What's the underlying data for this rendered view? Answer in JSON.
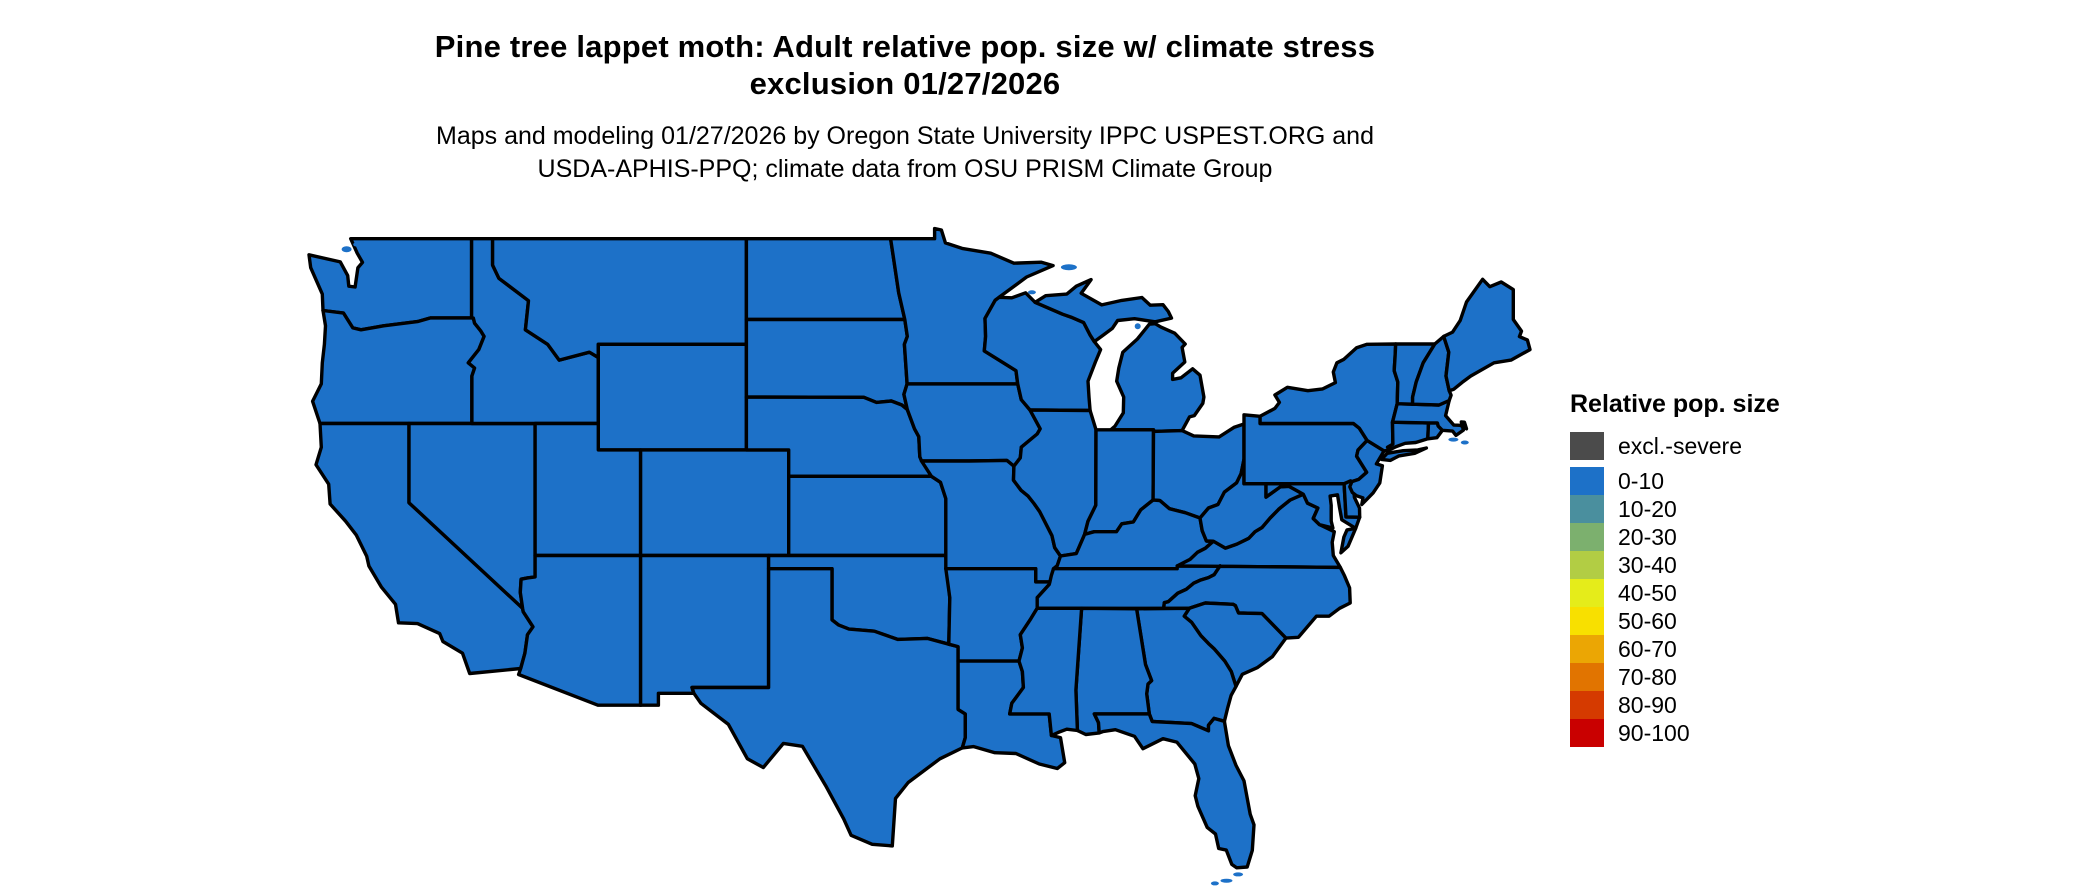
{
  "header": {
    "title_line1": "Pine tree lappet moth: Adult relative pop. size w/ climate stress",
    "title_line2": "exclusion 01/27/2026",
    "subtitle_line1": "Maps and modeling 01/27/2026 by Oregon State University IPPC USPEST.ORG and",
    "subtitle_line2": "USDA-APHIS-PPQ; climate data from OSU PRISM Climate Group"
  },
  "legend": {
    "title": "Relative pop. size",
    "items": [
      {
        "label": "excl.-severe",
        "color": "#4b4b4b",
        "separate": true
      },
      {
        "label": "0-10",
        "color": "#1d71c8"
      },
      {
        "label": "10-20",
        "color": "#4a8f9e"
      },
      {
        "label": "20-30",
        "color": "#7cb06e"
      },
      {
        "label": "30-40",
        "color": "#b2cd44"
      },
      {
        "label": "40-50",
        "color": "#e5ec1a"
      },
      {
        "label": "50-60",
        "color": "#f8e000"
      },
      {
        "label": "60-70",
        "color": "#eba604"
      },
      {
        "label": "70-80",
        "color": "#e17400"
      },
      {
        "label": "80-90",
        "color": "#d53a00"
      },
      {
        "label": "90-100",
        "color": "#c90000"
      }
    ]
  },
  "map": {
    "border_color": "#000000",
    "water_color": "#ffffff",
    "default_value": "0-10",
    "states": [
      {
        "id": "WA",
        "value": "0-10"
      },
      {
        "id": "OR",
        "value": "0-10"
      },
      {
        "id": "CA",
        "value": "0-10"
      },
      {
        "id": "NV",
        "value": "0-10"
      },
      {
        "id": "ID",
        "value": "0-10"
      },
      {
        "id": "MT",
        "value": "0-10"
      },
      {
        "id": "WY",
        "value": "0-10"
      },
      {
        "id": "UT",
        "value": "0-10"
      },
      {
        "id": "CO",
        "value": "0-10"
      },
      {
        "id": "AZ",
        "value": "0-10"
      },
      {
        "id": "NM",
        "value": "0-10"
      },
      {
        "id": "ND",
        "value": "0-10"
      },
      {
        "id": "SD",
        "value": "0-10"
      },
      {
        "id": "NE",
        "value": "0-10"
      },
      {
        "id": "KS",
        "value": "0-10"
      },
      {
        "id": "OK",
        "value": "0-10"
      },
      {
        "id": "TX",
        "value": "0-10"
      },
      {
        "id": "MN",
        "value": "0-10"
      },
      {
        "id": "IA",
        "value": "0-10"
      },
      {
        "id": "MO",
        "value": "0-10"
      },
      {
        "id": "AR",
        "value": "0-10"
      },
      {
        "id": "LA",
        "value": "0-10"
      },
      {
        "id": "WI",
        "value": "0-10"
      },
      {
        "id": "IL",
        "value": "0-10"
      },
      {
        "id": "MI",
        "value": "0-10"
      },
      {
        "id": "IN",
        "value": "0-10"
      },
      {
        "id": "OH",
        "value": "0-10"
      },
      {
        "id": "KY",
        "value": "0-10"
      },
      {
        "id": "TN",
        "value": "0-10"
      },
      {
        "id": "VA",
        "value": "0-10"
      },
      {
        "id": "WV",
        "value": "0-10"
      },
      {
        "id": "MD",
        "value": "0-10"
      },
      {
        "id": "DE",
        "value": "0-10"
      },
      {
        "id": "PA",
        "value": "0-10"
      },
      {
        "id": "NJ",
        "value": "0-10"
      },
      {
        "id": "NY",
        "value": "0-10"
      },
      {
        "id": "CT",
        "value": "0-10"
      },
      {
        "id": "RI",
        "value": "0-10"
      },
      {
        "id": "MA",
        "value": "0-10"
      },
      {
        "id": "VT",
        "value": "0-10"
      },
      {
        "id": "NH",
        "value": "0-10"
      },
      {
        "id": "ME",
        "value": "0-10"
      },
      {
        "id": "NC",
        "value": "0-10"
      },
      {
        "id": "SC",
        "value": "0-10"
      },
      {
        "id": "GA",
        "value": "0-10"
      },
      {
        "id": "AL",
        "value": "0-10"
      },
      {
        "id": "MS",
        "value": "0-10"
      },
      {
        "id": "FL",
        "value": "0-10"
      }
    ]
  }
}
